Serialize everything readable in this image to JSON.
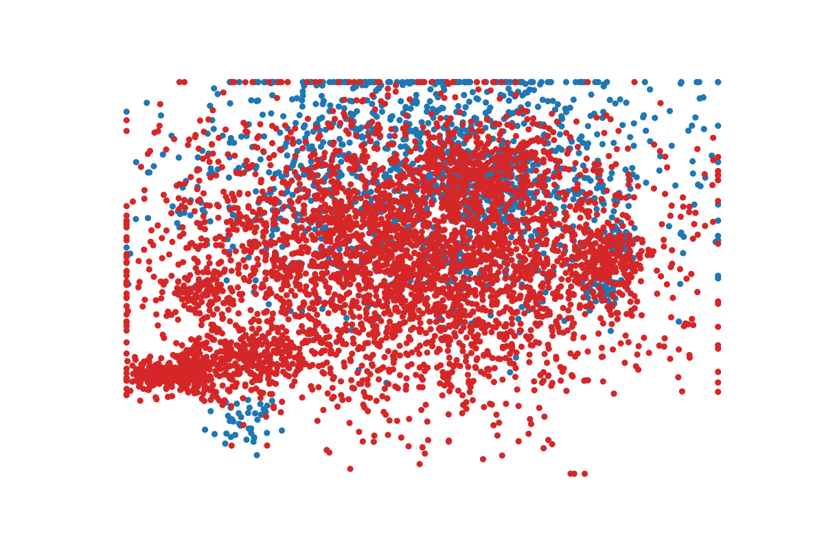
{
  "chart_data": {
    "type": "scatter",
    "title": "",
    "xlabel": "",
    "ylabel": "",
    "axes_visible": false,
    "grid": false,
    "legend": "none",
    "xlim": [
      0,
      1000
    ],
    "ylim": [
      0,
      630
    ],
    "series": [
      {
        "color": "#1f77b4",
        "clusters": [
          {
            "cx": 520,
            "cy": 485,
            "sx": 190,
            "sy": 105,
            "n": 1300,
            "seed": 11
          },
          {
            "cx": 560,
            "cy": 345,
            "sx": 20,
            "sy": 10,
            "n": 30,
            "seed": 12
          },
          {
            "cx": 800,
            "cy": 298,
            "sx": 14,
            "sy": 10,
            "n": 40,
            "seed": 13
          },
          {
            "cx": 835,
            "cy": 370,
            "sx": 15,
            "sy": 10,
            "n": 40,
            "seed": 14
          },
          {
            "cx": 620,
            "cy": 470,
            "sx": 45,
            "sy": 30,
            "n": 120,
            "seed": 15
          },
          {
            "cx": 200,
            "cy": 85,
            "sx": 30,
            "sy": 20,
            "n": 40,
            "seed": 16
          }
        ]
      },
      {
        "color": "#d62728",
        "clusters": [
          {
            "cx": 480,
            "cy": 345,
            "sx": 205,
            "sy": 115,
            "n": 3200,
            "seed": 21
          },
          {
            "cx": 85,
            "cy": 160,
            "sx": 38,
            "sy": 14,
            "n": 280,
            "seed": 22
          },
          {
            "cx": 195,
            "cy": 185,
            "sx": 60,
            "sy": 24,
            "n": 260,
            "seed": 23
          },
          {
            "cx": 800,
            "cy": 340,
            "sx": 34,
            "sy": 30,
            "n": 200,
            "seed": 24
          },
          {
            "cx": 610,
            "cy": 490,
            "sx": 55,
            "sy": 32,
            "n": 220,
            "seed": 25
          },
          {
            "cx": 130,
            "cy": 295,
            "sx": 22,
            "sy": 18,
            "n": 80,
            "seed": 26
          }
        ]
      }
    ]
  }
}
